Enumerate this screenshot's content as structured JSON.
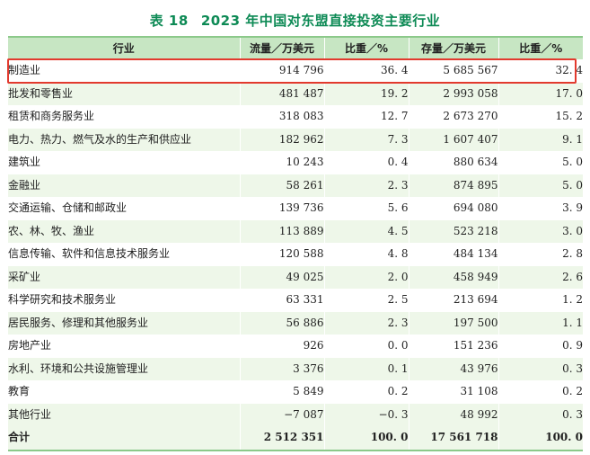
{
  "title": {
    "number": "表 18",
    "text": "2023 年中国对东盟直接投资主要行业"
  },
  "columns": {
    "industry": "行业",
    "flow": "流量／万美元",
    "flow_share": "比重／%",
    "stock": "存量／万美元",
    "stock_share": "比重／%"
  },
  "rows": [
    {
      "industry": "制造业",
      "flow": "914 796",
      "flow_share": "36. 4",
      "stock": "5 685 567",
      "stock_share": "32. 4"
    },
    {
      "industry": "批发和零售业",
      "flow": "481 487",
      "flow_share": "19. 2",
      "stock": "2 993 058",
      "stock_share": "17. 0"
    },
    {
      "industry": "租赁和商务服务业",
      "flow": "318 083",
      "flow_share": "12. 7",
      "stock": "2 673 270",
      "stock_share": "15. 2"
    },
    {
      "industry": "电力、热力、燃气及水的生产和供应业",
      "flow": "182 962",
      "flow_share": "7. 3",
      "stock": "1 607 407",
      "stock_share": "9. 1"
    },
    {
      "industry": "建筑业",
      "flow": "10 243",
      "flow_share": "0. 4",
      "stock": "880 634",
      "stock_share": "5. 0"
    },
    {
      "industry": "金融业",
      "flow": "58 261",
      "flow_share": "2. 3",
      "stock": "874 895",
      "stock_share": "5. 0"
    },
    {
      "industry": "交通运输、仓储和邮政业",
      "flow": "139 736",
      "flow_share": "5. 6",
      "stock": "694 080",
      "stock_share": "3. 9"
    },
    {
      "industry": "农、林、牧、渔业",
      "flow": "113 889",
      "flow_share": "4. 5",
      "stock": "523 218",
      "stock_share": "3. 0"
    },
    {
      "industry": "信息传输、软件和信息技术服务业",
      "flow": "120 588",
      "flow_share": "4. 8",
      "stock": "484 134",
      "stock_share": "2. 8"
    },
    {
      "industry": "采矿业",
      "flow": "49 025",
      "flow_share": "2. 0",
      "stock": "458 949",
      "stock_share": "2. 6"
    },
    {
      "industry": "科学研究和技术服务业",
      "flow": "63 331",
      "flow_share": "2. 5",
      "stock": "213 694",
      "stock_share": "1. 2"
    },
    {
      "industry": "居民服务、修理和其他服务业",
      "flow": "56 886",
      "flow_share": "2. 3",
      "stock": "197 500",
      "stock_share": "1. 1"
    },
    {
      "industry": "房地产业",
      "flow": "926",
      "flow_share": "0. 0",
      "stock": "151 236",
      "stock_share": "0. 9"
    },
    {
      "industry": "水利、环境和公共设施管理业",
      "flow": "3 376",
      "flow_share": "0. 1",
      "stock": "43 976",
      "stock_share": "0. 3"
    },
    {
      "industry": "教育",
      "flow": "5 849",
      "flow_share": "0. 2",
      "stock": "31 108",
      "stock_share": "0. 2"
    },
    {
      "industry": "其他行业",
      "flow": "−7 087",
      "flow_share": "−0. 3",
      "stock": "48 992",
      "stock_share": "0. 3"
    }
  ],
  "total": {
    "industry": "合计",
    "flow": "2 512 351",
    "flow_share": "100. 0",
    "stock": "17 561 718",
    "stock_share": "100. 0"
  },
  "colors": {
    "title": "#0d8a55",
    "header_bg": "#c7e6c3",
    "stripe_bg": "#eef7e9",
    "highlight_border": "#e23a2e"
  }
}
